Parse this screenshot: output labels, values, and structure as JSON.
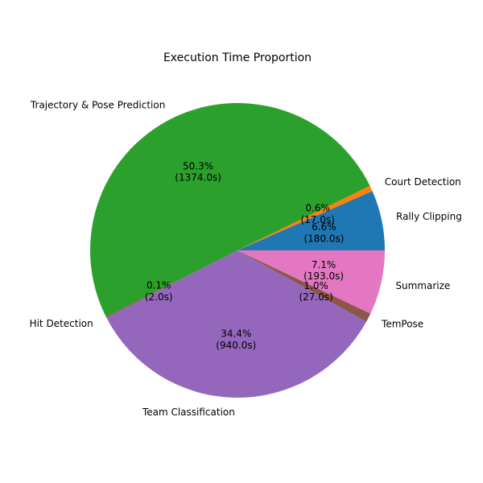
{
  "chart_data": {
    "type": "pie",
    "title": "Execution Time Proportion",
    "slices": [
      {
        "label": "Rally Clipping",
        "value": 180.0,
        "percent_label": "6.6%",
        "value_label": "(180.0s)",
        "color": "#1f77b4"
      },
      {
        "label": "Court Detection",
        "value": 17.0,
        "percent_label": "0.6%",
        "value_label": "(17.0s)",
        "color": "#ff7f0e"
      },
      {
        "label": "Trajectory & Pose Prediction",
        "value": 1374.0,
        "percent_label": "50.3%",
        "value_label": "(1374.0s)",
        "color": "#2ca02c"
      },
      {
        "label": "Hit Detection",
        "value": 2.0,
        "percent_label": "0.1%",
        "value_label": "(2.0s)",
        "color": "#d62728"
      },
      {
        "label": "Team Classification",
        "value": 940.0,
        "percent_label": "34.4%",
        "value_label": "(940.0s)",
        "color": "#9467bd"
      },
      {
        "label": "TemPose",
        "value": 27.0,
        "percent_label": "1.0%",
        "value_label": "(27.0s)",
        "color": "#8c564b"
      },
      {
        "label": "Summarize",
        "value": 193.0,
        "percent_label": "7.1%",
        "value_label": "(193.0s)",
        "color": "#e377c2"
      }
    ],
    "start_angle_deg": 0,
    "direction": "counterclockwise",
    "legend": "none"
  }
}
